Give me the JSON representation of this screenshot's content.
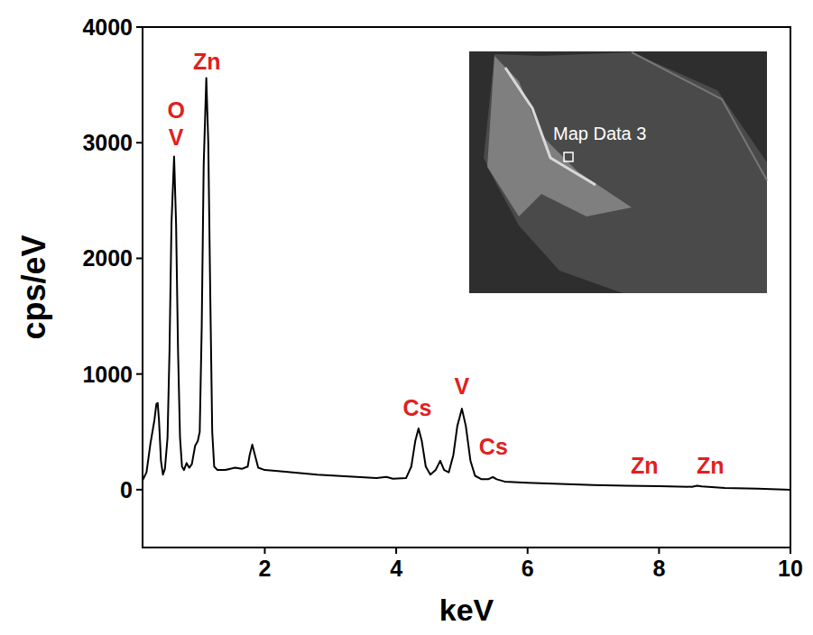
{
  "chart_data": {
    "type": "line",
    "x_label": "keV",
    "y_label": "cps/eV",
    "x": [
      0.14,
      0.2,
      0.26,
      0.32,
      0.35,
      0.37,
      0.39,
      0.42,
      0.45,
      0.48,
      0.52,
      0.55,
      0.58,
      0.62,
      0.65,
      0.68,
      0.71,
      0.74,
      0.77,
      0.81,
      0.85,
      0.89,
      0.94,
      0.98,
      1.01,
      1.04,
      1.07,
      1.11,
      1.14,
      1.17,
      1.2,
      1.23,
      1.28,
      1.4,
      1.55,
      1.65,
      1.74,
      1.77,
      1.81,
      1.85,
      1.9,
      2.0,
      2.2,
      2.5,
      2.8,
      3.1,
      3.4,
      3.7,
      3.85,
      3.95,
      4.15,
      4.23,
      4.29,
      4.34,
      4.39,
      4.45,
      4.52,
      4.6,
      4.67,
      4.73,
      4.8,
      4.87,
      4.93,
      5.0,
      5.06,
      5.13,
      5.2,
      5.3,
      5.4,
      5.47,
      5.53,
      5.65,
      6.0,
      6.5,
      7.0,
      7.5,
      8.0,
      8.5,
      8.58,
      8.65,
      9.0,
      9.5,
      10.0
    ],
    "values": [
      80,
      150,
      400,
      600,
      740,
      750,
      600,
      250,
      130,
      180,
      450,
      1200,
      2300,
      2880,
      2300,
      1200,
      450,
      200,
      170,
      230,
      190,
      220,
      380,
      420,
      500,
      1400,
      2800,
      3560,
      3000,
      1700,
      500,
      200,
      170,
      170,
      190,
      180,
      200,
      300,
      390,
      300,
      190,
      170,
      160,
      145,
      130,
      120,
      110,
      100,
      110,
      95,
      100,
      200,
      420,
      530,
      420,
      200,
      130,
      170,
      250,
      170,
      150,
      300,
      550,
      700,
      550,
      250,
      120,
      90,
      90,
      110,
      90,
      70,
      60,
      50,
      40,
      35,
      30,
      25,
      35,
      28,
      15,
      8,
      0
    ],
    "color": "#000000",
    "xlim": [
      0.14,
      10
    ],
    "xticks": [
      2,
      4,
      6,
      8,
      10
    ],
    "ylim": [
      -500,
      4000
    ],
    "yticks": [
      0,
      1000,
      2000,
      3000,
      4000
    ],
    "grid": false,
    "annotations": [
      {
        "text": "O",
        "x": 0.65,
        "y": 3283,
        "color": "#e0201e"
      },
      {
        "text": "V",
        "x": 0.65,
        "y": 3049,
        "color": "#e0201e"
      },
      {
        "text": "Zn",
        "x": 1.12,
        "y": 3704,
        "color": "#e0201e"
      },
      {
        "text": "Cs",
        "x": 4.32,
        "y": 710,
        "color": "#e0201e"
      },
      {
        "text": "V",
        "x": 5.0,
        "y": 897,
        "color": "#e0201e"
      },
      {
        "text": "Cs",
        "x": 5.48,
        "y": 374,
        "color": "#e0201e"
      },
      {
        "text": "Zn",
        "x": 7.78,
        "y": 210,
        "color": "#e0201e"
      },
      {
        "text": "Zn",
        "x": 8.78,
        "y": 210,
        "color": "#e0201e"
      }
    ],
    "inset": {
      "label": "Map Data 3"
    }
  }
}
